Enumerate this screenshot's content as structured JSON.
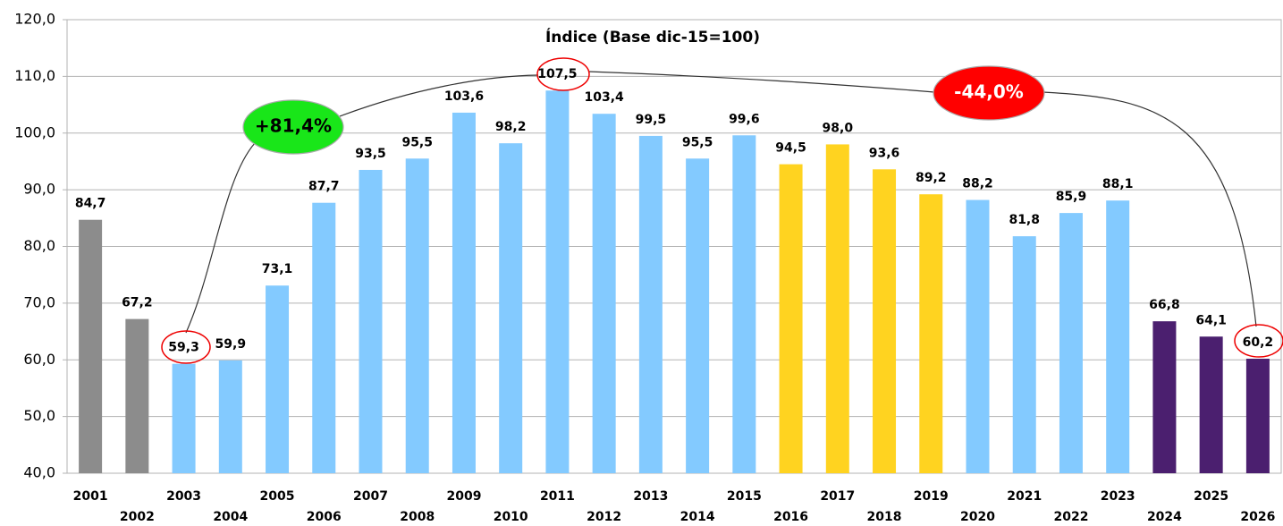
{
  "chart_data": {
    "type": "bar",
    "title": "Índice (Base dic-15=100)",
    "categories": [
      "2001",
      "2002",
      "2003",
      "2004",
      "2005",
      "2006",
      "2007",
      "2008",
      "2009",
      "2010",
      "2011",
      "2012",
      "2013",
      "2014",
      "2015",
      "2016",
      "2017",
      "2018",
      "2019",
      "2020",
      "2021",
      "2022",
      "2023",
      "2024",
      "2025",
      "2026"
    ],
    "values": [
      84.7,
      67.2,
      59.3,
      59.9,
      73.1,
      87.7,
      93.5,
      95.5,
      103.6,
      98.2,
      107.5,
      103.4,
      99.5,
      95.5,
      99.6,
      94.5,
      98.0,
      93.6,
      89.2,
      88.2,
      81.8,
      85.9,
      88.1,
      66.8,
      64.1,
      60.2
    ],
    "value_labels": [
      "84,7",
      "67,2",
      "59,3",
      "59,9",
      "73,1",
      "87,7",
      "93,5",
      "95,5",
      "103,6",
      "98,2",
      "107,5",
      "103,4",
      "99,5",
      "95,5",
      "99,6",
      "94,5",
      "98,0",
      "93,6",
      "89,2",
      "88,2",
      "81,8",
      "85,9",
      "88,1",
      "66,8",
      "64,1",
      "60,2"
    ],
    "colors": [
      "#8c8c8c",
      "#8c8c8c",
      "#83caff",
      "#83caff",
      "#83caff",
      "#83caff",
      "#83caff",
      "#83caff",
      "#83caff",
      "#83caff",
      "#83caff",
      "#83caff",
      "#83caff",
      "#83caff",
      "#83caff",
      "#ffd320",
      "#ffd320",
      "#ffd320",
      "#ffd320",
      "#83caff",
      "#83caff",
      "#83caff",
      "#83caff",
      "#4b1f6f",
      "#4b1f6f",
      "#4b1f6f"
    ],
    "ylim": [
      40,
      120
    ],
    "yticks": [
      {
        "value": 40,
        "label": "40,0"
      },
      {
        "value": 50,
        "label": "50,0"
      },
      {
        "value": 60,
        "label": "60,0"
      },
      {
        "value": 70,
        "label": "70,0"
      },
      {
        "value": 80,
        "label": "80,0"
      },
      {
        "value": 90,
        "label": "90,0"
      },
      {
        "value": 100,
        "label": "100,0"
      },
      {
        "value": 110,
        "label": "110,0"
      },
      {
        "value": 120,
        "label": "120,0"
      }
    ],
    "grid": true,
    "annotations": [
      "+81,4%",
      "-44,0%"
    ]
  }
}
